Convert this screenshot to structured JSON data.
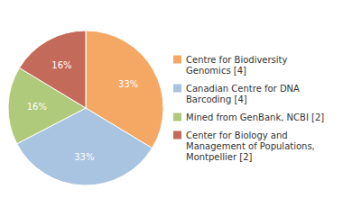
{
  "chart_data": {
    "type": "pie",
    "categories": [
      "Centre for Biodiversity\nGenomics [4]",
      "Canadian Centre for DNA\nBarcoding [4]",
      "Mined from GenBank, NCBI [2]",
      "Center for Biology and\nManagement of Populations,\nMontpellier [2]"
    ],
    "values": [
      33,
      33,
      16,
      16
    ],
    "value_labels": [
      "33%",
      "33%",
      "16%",
      "16%"
    ],
    "colors": [
      "#F5A864",
      "#A8C4E0",
      "#AECA7A",
      "#C46A5A"
    ],
    "data_labels": true,
    "legend": "right"
  }
}
